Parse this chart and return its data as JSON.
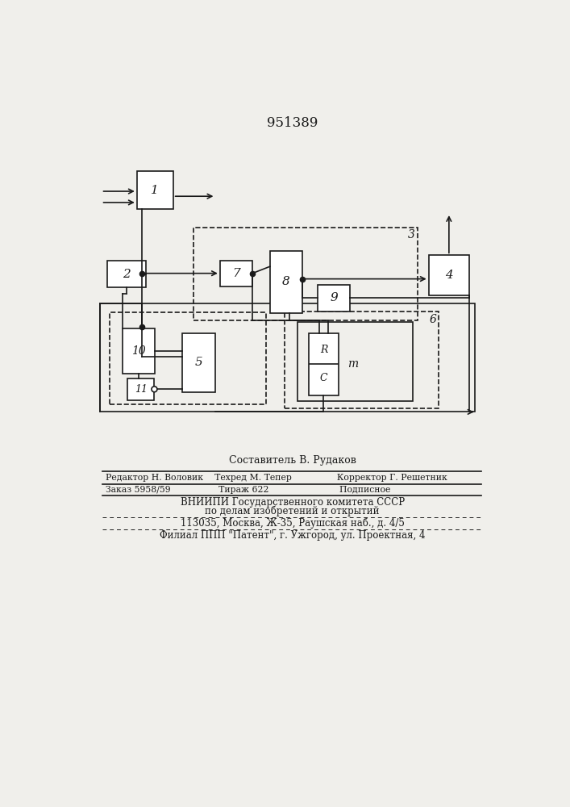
{
  "title": "951389",
  "background_color": "#f0efeb",
  "line_color": "#1a1a1a",
  "footer_lines": [
    "Составитель В. Рудаков",
    "Редактор Н. Воловик    Техред М. Тепер                Корректор Г. Решетник",
    "Заказ 5958/59                 Тираж 622                         Подписное",
    "ВНИИПИ Государственного комитета СССР",
    "по делам изобретений и открытий",
    "113035, Москва, Ж-35, Раушская наб., д. 4/5",
    "Филиал ППП \"Патент\", г. Ужгород, ул. Проектная, 4"
  ]
}
